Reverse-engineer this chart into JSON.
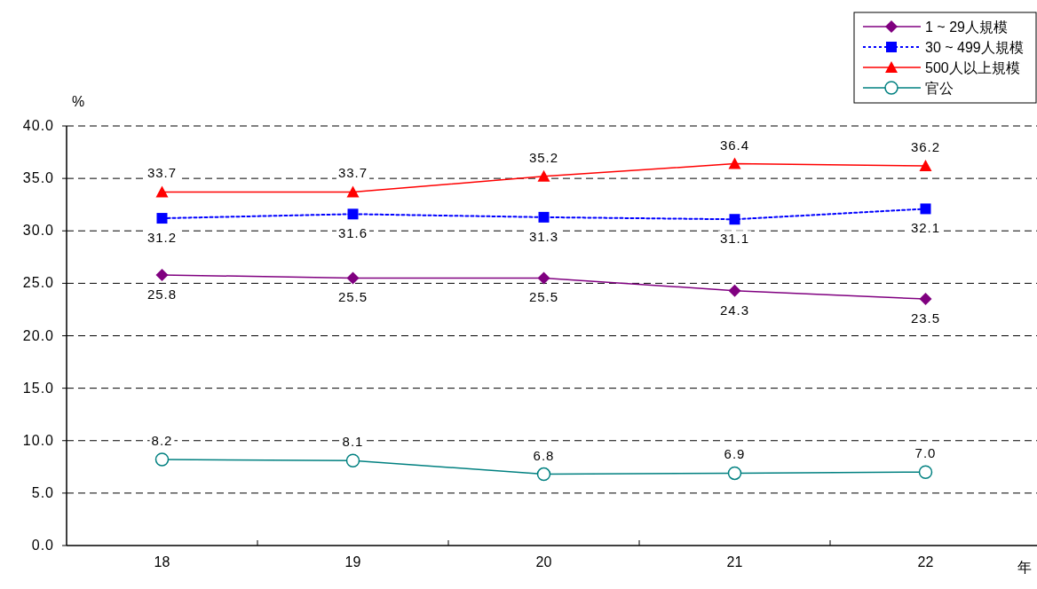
{
  "chart_data": {
    "type": "line",
    "xlabel": "年",
    "ylabel": "%",
    "categories": [
      "18",
      "19",
      "20",
      "21",
      "22"
    ],
    "series": [
      {
        "name": "1 ~ 29人規模",
        "color": "#800080",
        "marker": "diamond",
        "line_style": "solid",
        "values": [
          25.8,
          25.5,
          25.5,
          24.3,
          23.5
        ],
        "value_labels": [
          "25.8",
          "25.5",
          "25.5",
          "24.3",
          "23.5"
        ]
      },
      {
        "name": "30 ~ 499人規模",
        "color": "#0000ff",
        "marker": "square",
        "line_style": "dotted",
        "values": [
          31.2,
          31.6,
          31.3,
          31.1,
          32.1
        ],
        "value_labels": [
          "31.2",
          "31.6",
          "31.3",
          "31.1",
          "32.1"
        ]
      },
      {
        "name": "500人以上規模",
        "color": "#ff0000",
        "marker": "triangle",
        "line_style": "solid",
        "values": [
          33.7,
          33.7,
          35.2,
          36.4,
          36.2
        ],
        "value_labels": [
          "33.7",
          "33.7",
          "35.2",
          "36.4",
          "36.2"
        ]
      },
      {
        "name": "官公",
        "color": "#008080",
        "marker": "circle",
        "line_style": "solid",
        "values": [
          8.2,
          8.1,
          6.8,
          6.9,
          7.0
        ],
        "value_labels": [
          "8.2",
          "8.1",
          "6.8",
          "6.9",
          "7.0"
        ]
      }
    ],
    "ylim": [
      0,
      40
    ],
    "yticks": [
      {
        "value": 0,
        "label": "0.0"
      },
      {
        "value": 5,
        "label": "5.0"
      },
      {
        "value": 10,
        "label": "10.0"
      },
      {
        "value": 15,
        "label": "15.0"
      },
      {
        "value": 20,
        "label": "20.0"
      },
      {
        "value": 25,
        "label": "25.0"
      },
      {
        "value": 30,
        "label": "30.0"
      },
      {
        "value": 35,
        "label": "35.0"
      },
      {
        "value": 40,
        "label": "40.0"
      }
    ],
    "grid": "y",
    "legend": "top right"
  }
}
